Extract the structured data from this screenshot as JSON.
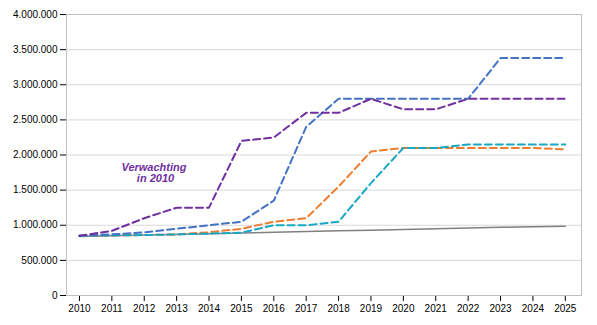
{
  "chart_data": {
    "type": "line",
    "x": [
      2010,
      2011,
      2012,
      2013,
      2014,
      2015,
      2016,
      2017,
      2018,
      2019,
      2020,
      2021,
      2022,
      2023,
      2024,
      2025
    ],
    "series": [
      {
        "color": "#808080",
        "line_style": "solid",
        "values": [
          840000,
          850000,
          860000,
          870000,
          880000,
          890000,
          900000,
          910000,
          920000,
          930000,
          940000,
          950000,
          960000,
          970000,
          980000,
          985000
        ]
      },
      {
        "color": "#ED7D31",
        "line_style": "dashed",
        "values": [
          850000,
          855000,
          860000,
          870000,
          900000,
          950000,
          1050000,
          1100000,
          1550000,
          2050000,
          2100000,
          2100000,
          2100000,
          2100000,
          2100000,
          2080000
        ]
      },
      {
        "color": "#17A8C4",
        "line_style": "dashed",
        "values": [
          850000,
          855000,
          860000,
          870000,
          880000,
          895000,
          1000000,
          1000000,
          1050000,
          1600000,
          2100000,
          2100000,
          2150000,
          2150000,
          2150000,
          2150000
        ]
      },
      {
        "color": "#4472C4",
        "line_style": "dashed",
        "values": [
          850000,
          870000,
          900000,
          950000,
          1000000,
          1050000,
          1350000,
          2400000,
          2800000,
          2800000,
          2800000,
          2800000,
          2800000,
          3380000,
          3380000,
          3380000
        ]
      },
      {
        "color": "#7030A0",
        "line_style": "dashed",
        "values": [
          850000,
          920000,
          1100000,
          1250000,
          1250000,
          2200000,
          2250000,
          2600000,
          2600000,
          2800000,
          2650000,
          2650000,
          2800000,
          2800000,
          2800000,
          2800000
        ]
      }
    ],
    "annotations": [
      {
        "text": "Verwachting\n in 2010",
        "x": 2012.3,
        "y": 1750000,
        "color": "#7030A0"
      }
    ],
    "xlim": [
      2009.6,
      2025.5
    ],
    "xticks": [
      2010,
      2011,
      2012,
      2013,
      2014,
      2015,
      2016,
      2017,
      2018,
      2019,
      2020,
      2021,
      2022,
      2023,
      2024,
      2025
    ],
    "ylim": [
      0,
      4000000
    ],
    "yticks": [
      0,
      {
        "value": 500000,
        "label": "500.000"
      },
      {
        "value": 1000000,
        "label": "1.000.000"
      },
      {
        "value": 1500000,
        "label": "1.500.000"
      },
      {
        "value": 2000000,
        "label": "2.000.000"
      },
      {
        "value": 2500000,
        "label": "2.500.000"
      },
      {
        "value": 3000000,
        "label": "3.000.000"
      },
      {
        "value": 3500000,
        "label": "3.500.000"
      },
      {
        "value": 4000000,
        "label": "4.000.000"
      }
    ],
    "grid": true
  }
}
